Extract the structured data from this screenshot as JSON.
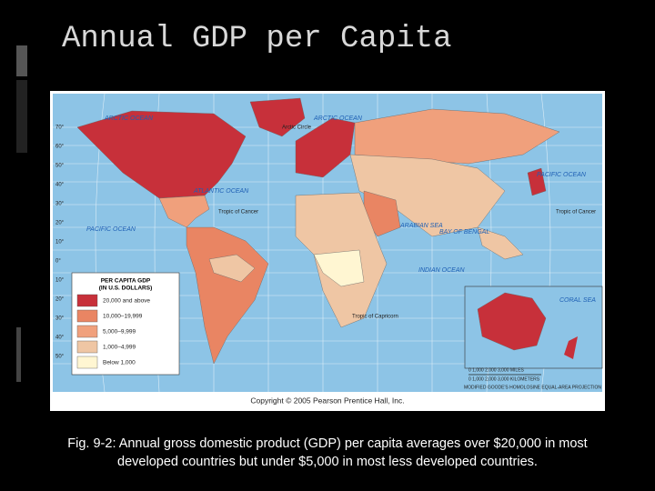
{
  "header": {
    "title": "Annual GDP per Capita"
  },
  "map": {
    "labels": [
      "ARCTIC OCEAN",
      "ARCTIC OCEAN",
      "Arctic Circle",
      "ATLANTIC OCEAN",
      "PACIFIC OCEAN",
      "PACIFIC OCEAN",
      "INDIAN OCEAN",
      "Tropic of Cancer",
      "Tropic of Cancer",
      "Tropic of Capricorn",
      "ARABIAN SEA",
      "BAY OF BENGAL",
      "CORAL SEA"
    ],
    "lat_labels": [
      "70°",
      "60°",
      "50°",
      "40°",
      "30°",
      "20°",
      "10°",
      "0°",
      "10°",
      "20°",
      "30°",
      "40°",
      "50°"
    ],
    "legend": {
      "title": "PER CAPITA GDP",
      "subtitle": "(IN U.S. DOLLARS)",
      "items": [
        {
          "label": "20,000 and above",
          "color": "#c7303a"
        },
        {
          "label": "10,000–19,999",
          "color": "#e98563"
        },
        {
          "label": "5,000–9,999",
          "color": "#f0a07c"
        },
        {
          "label": "1,000–4,999",
          "color": "#efc6a4"
        },
        {
          "label": "Below 1,000",
          "color": "#fff6d2"
        }
      ]
    },
    "scale": {
      "miles": "0 1,000 2,000 3,000 MILES",
      "kilometers": "0 1,000 2,000 3,000 KILOMETERS"
    },
    "projection": "MODIFIED GOODE'S HOMOLOSINE EQUAL-AREA PROJECTION",
    "copyright": "Copyright © 2005 Pearson Prentice Hall, Inc."
  },
  "caption": [
    "Fig. 9-2: Annual gross domestic product (GDP) per capita averages over $20,000 in most",
    "developed countries but under $5,000 in most less developed countries."
  ]
}
